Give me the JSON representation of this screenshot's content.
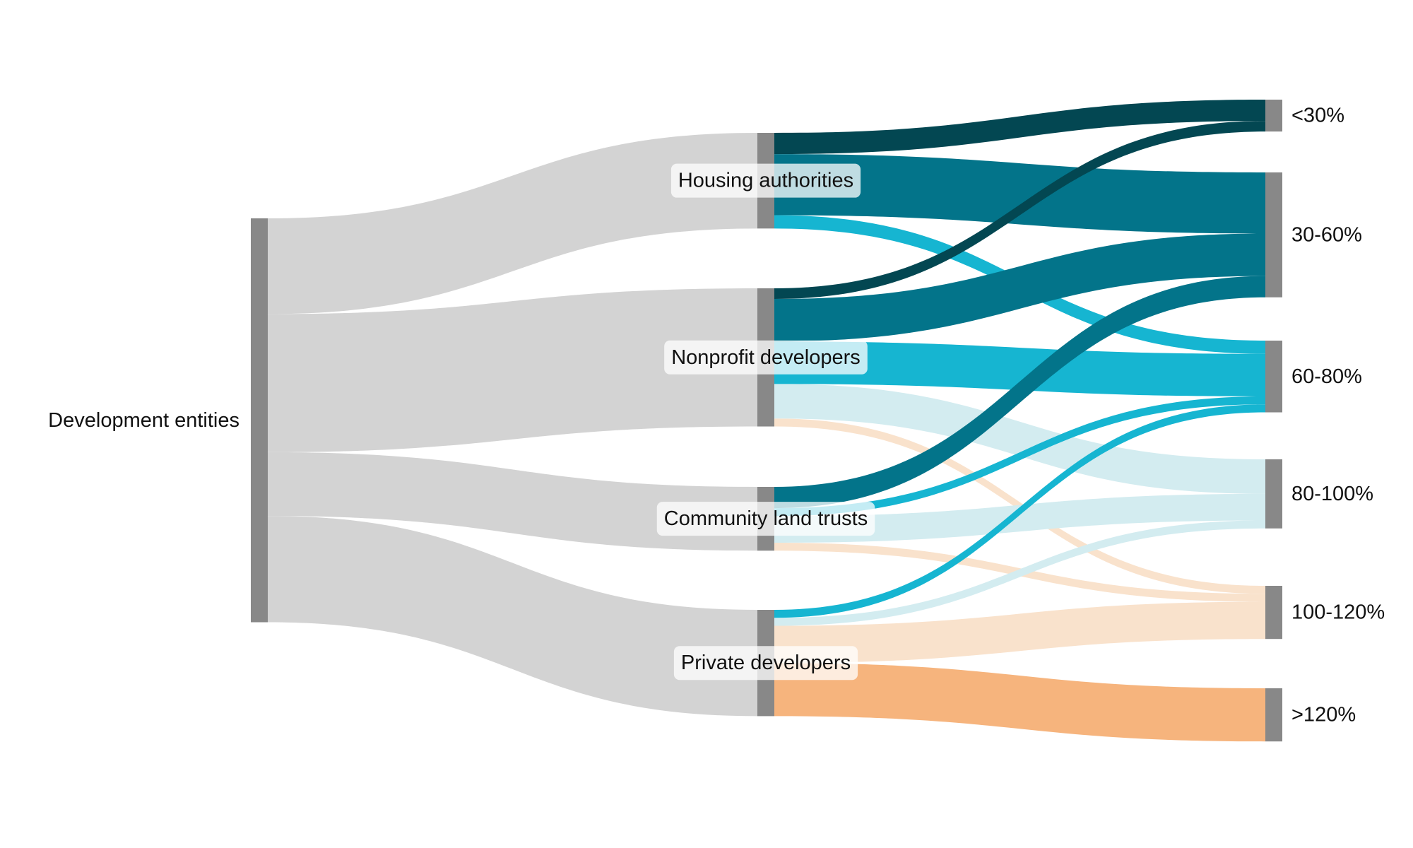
{
  "chart_data": {
    "type": "sankey",
    "nodes": [
      {
        "id": "root",
        "label": "Development entities",
        "column": 0
      },
      {
        "id": "ha",
        "label": "Housing authorities",
        "column": 1
      },
      {
        "id": "np",
        "label": "Nonprofit developers",
        "column": 1
      },
      {
        "id": "clt",
        "label": "Community land trusts",
        "column": 1
      },
      {
        "id": "pd",
        "label": "Private developers",
        "column": 1
      },
      {
        "id": "b1",
        "label": "<30%",
        "column": 2
      },
      {
        "id": "b2",
        "label": "30-60%",
        "column": 2
      },
      {
        "id": "b3",
        "label": "60-80%",
        "column": 2
      },
      {
        "id": "b4",
        "label": "80-100%",
        "column": 2
      },
      {
        "id": "b5",
        "label": "100-120%",
        "column": 2
      },
      {
        "id": "b6",
        "label": ">120%",
        "column": 2
      }
    ],
    "links": [
      {
        "source": "root",
        "target": "ha",
        "value": 18
      },
      {
        "source": "root",
        "target": "np",
        "value": 26
      },
      {
        "source": "root",
        "target": "clt",
        "value": 12
      },
      {
        "source": "root",
        "target": "pd",
        "value": 20
      },
      {
        "source": "ha",
        "target": "b1",
        "value": 4
      },
      {
        "source": "ha",
        "target": "b2",
        "value": 11.5
      },
      {
        "source": "ha",
        "target": "b3",
        "value": 2.5
      },
      {
        "source": "np",
        "target": "b1",
        "value": 2
      },
      {
        "source": "np",
        "target": "b2",
        "value": 8
      },
      {
        "source": "np",
        "target": "b3",
        "value": 8
      },
      {
        "source": "np",
        "target": "b4",
        "value": 6.5
      },
      {
        "source": "np",
        "target": "b5",
        "value": 1.5
      },
      {
        "source": "clt",
        "target": "b2",
        "value": 4
      },
      {
        "source": "clt",
        "target": "b3",
        "value": 1.5
      },
      {
        "source": "clt",
        "target": "b4",
        "value": 5
      },
      {
        "source": "clt",
        "target": "b5",
        "value": 1.5
      },
      {
        "source": "pd",
        "target": "b3",
        "value": 1.5
      },
      {
        "source": "pd",
        "target": "b4",
        "value": 1.5
      },
      {
        "source": "pd",
        "target": "b5",
        "value": 7
      },
      {
        "source": "pd",
        "target": "b6",
        "value": 10
      }
    ],
    "colors": {
      "node": "#888888",
      "root_links": "#d3d3d3",
      "b1": "#034752",
      "b2": "#03748a",
      "b3": "#16b5d1",
      "b4": "#d3ecf0",
      "b5": "#f9e2cc",
      "b6": "#f6b47d"
    }
  }
}
